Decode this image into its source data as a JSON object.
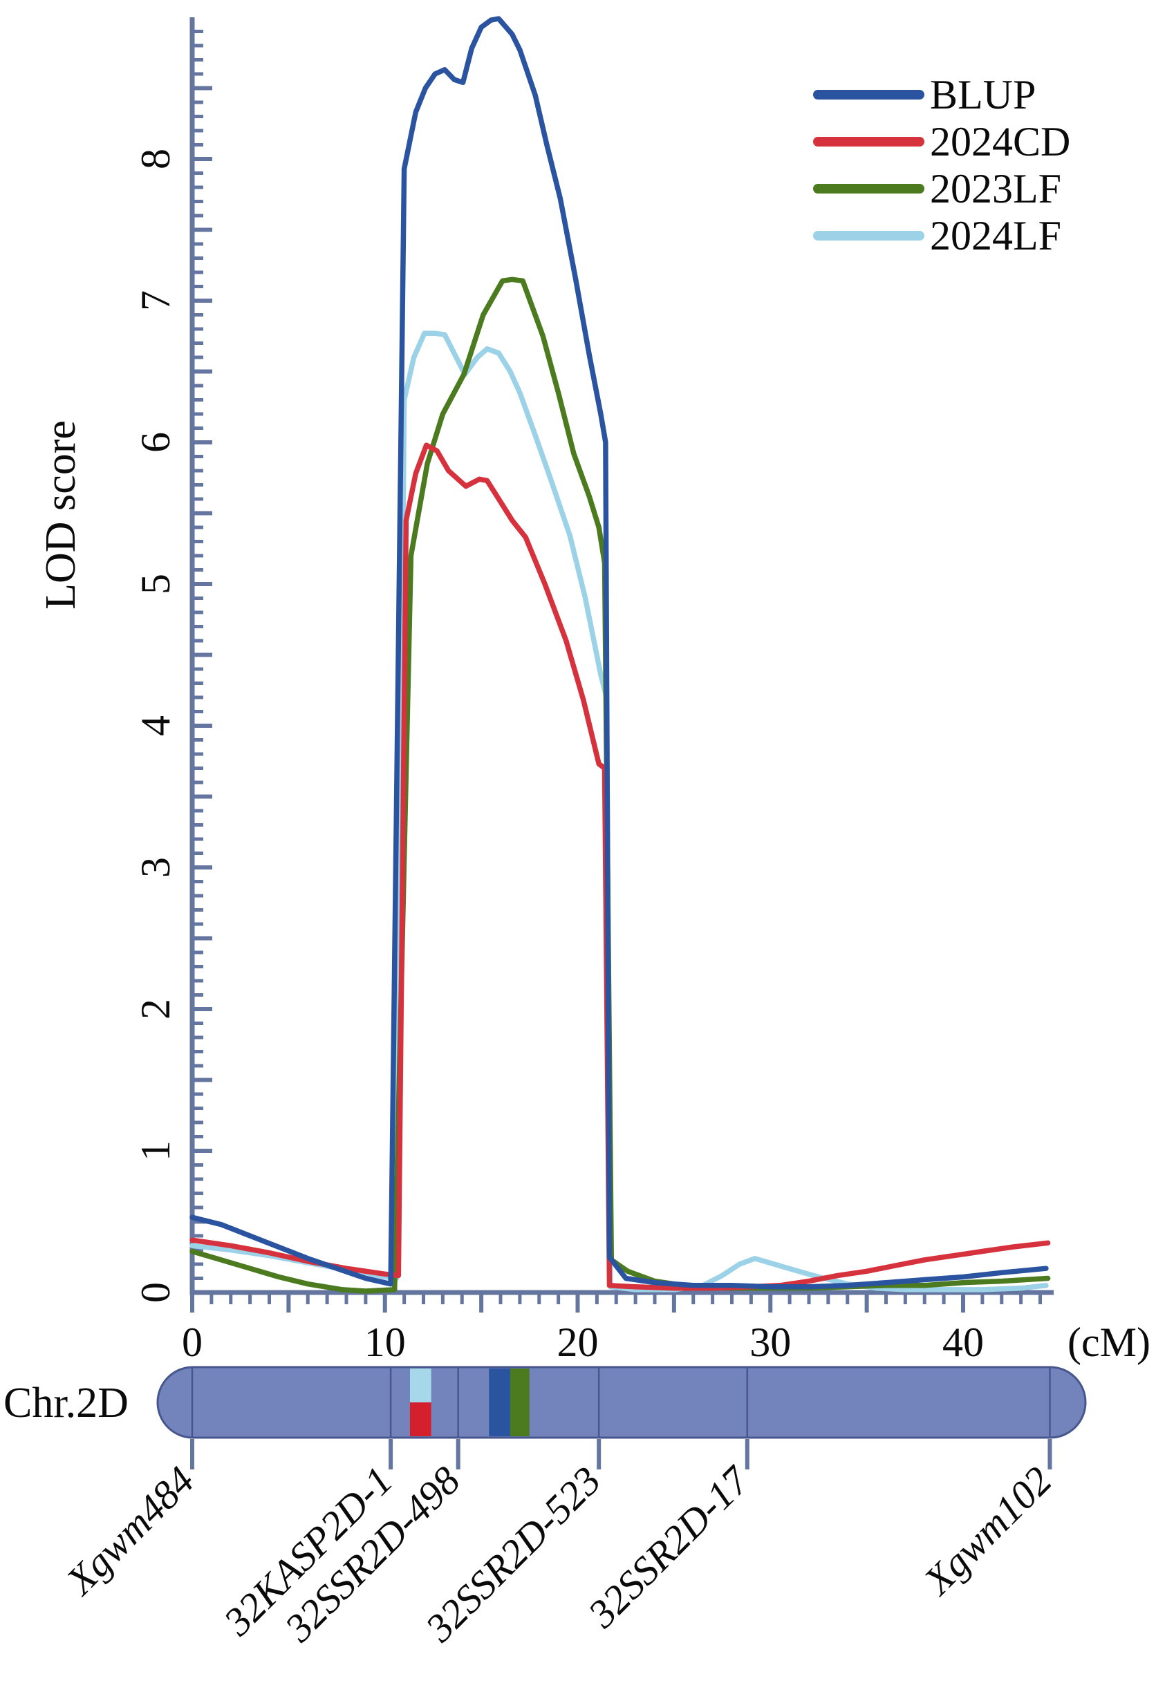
{
  "axes": {
    "y_title": "LOD score",
    "x_unit": "(cM)",
    "x_label_ticks": [
      0,
      10,
      20,
      30,
      40
    ],
    "x_minor_step": 1,
    "x_medium_step": 5,
    "y_label_ticks": [
      0,
      1,
      2,
      3,
      4,
      5,
      6,
      7,
      8
    ],
    "y_medium_step": 0.5,
    "y_minor_step": 0.1,
    "xlim": [
      0,
      44.7
    ],
    "ylim": [
      0,
      9
    ],
    "axis_color": "#64759F"
  },
  "legend": {
    "items": [
      {
        "label": "BLUP",
        "color": "#2B54A0"
      },
      {
        "label": "2024CD",
        "color": "#D6323E"
      },
      {
        "label": "2023LF",
        "color": "#4B7A1F"
      },
      {
        "label": "2024LF",
        "color": "#9CD2E7"
      }
    ]
  },
  "chart_data": {
    "type": "line",
    "title": "",
    "xlabel": "(cM)",
    "ylabel": "LOD score",
    "xlim": [
      0,
      44.7
    ],
    "ylim": [
      0,
      9
    ],
    "grid": false,
    "legend_position": "top-right",
    "series": [
      {
        "name": "BLUP",
        "color": "#2B54A0",
        "points": [
          [
            0,
            0.53
          ],
          [
            1.5,
            0.48
          ],
          [
            3,
            0.4
          ],
          [
            4.5,
            0.32
          ],
          [
            6,
            0.24
          ],
          [
            7.5,
            0.17
          ],
          [
            9,
            0.1
          ],
          [
            10.3,
            0.06
          ],
          [
            11,
            7.93
          ],
          [
            11.6,
            8.33
          ],
          [
            12.1,
            8.5
          ],
          [
            12.6,
            8.6
          ],
          [
            13.1,
            8.63
          ],
          [
            13.6,
            8.56
          ],
          [
            14.05,
            8.54
          ],
          [
            14.5,
            8.78
          ],
          [
            15,
            8.93
          ],
          [
            15.5,
            8.98
          ],
          [
            15.9,
            8.99
          ],
          [
            16.6,
            8.88
          ],
          [
            17,
            8.77
          ],
          [
            17.8,
            8.45
          ],
          [
            18.4,
            8.1
          ],
          [
            19.1,
            7.72
          ],
          [
            19.9,
            7.15
          ],
          [
            20.6,
            6.62
          ],
          [
            21.2,
            6.2
          ],
          [
            21.45,
            6.0
          ],
          [
            21.65,
            0.25
          ],
          [
            22.5,
            0.1
          ],
          [
            24,
            0.07
          ],
          [
            26,
            0.05
          ],
          [
            28,
            0.05
          ],
          [
            30,
            0.04
          ],
          [
            32,
            0.04
          ],
          [
            34,
            0.05
          ],
          [
            36,
            0.07
          ],
          [
            38,
            0.09
          ],
          [
            40,
            0.11
          ],
          [
            42,
            0.14
          ],
          [
            44.3,
            0.17
          ]
        ]
      },
      {
        "name": "2024CD",
        "color": "#D6323E",
        "points": [
          [
            0,
            0.37
          ],
          [
            2,
            0.33
          ],
          [
            4,
            0.28
          ],
          [
            6,
            0.22
          ],
          [
            8,
            0.17
          ],
          [
            10,
            0.13
          ],
          [
            10.7,
            0.12
          ],
          [
            11.1,
            5.45
          ],
          [
            11.6,
            5.78
          ],
          [
            12.15,
            5.98
          ],
          [
            12.7,
            5.94
          ],
          [
            13.3,
            5.8
          ],
          [
            14.2,
            5.69
          ],
          [
            14.9,
            5.74
          ],
          [
            15.3,
            5.73
          ],
          [
            16,
            5.58
          ],
          [
            16.6,
            5.45
          ],
          [
            17.3,
            5.33
          ],
          [
            18.3,
            5.0
          ],
          [
            19.4,
            4.6
          ],
          [
            20.3,
            4.18
          ],
          [
            21.1,
            3.73
          ],
          [
            21.4,
            3.7
          ],
          [
            21.65,
            0.05
          ],
          [
            23,
            0.04
          ],
          [
            25,
            0.03
          ],
          [
            27,
            0.03
          ],
          [
            29,
            0.04
          ],
          [
            30.5,
            0.05
          ],
          [
            32,
            0.08
          ],
          [
            33.5,
            0.12
          ],
          [
            35,
            0.15
          ],
          [
            36.5,
            0.19
          ],
          [
            38,
            0.23
          ],
          [
            39.5,
            0.26
          ],
          [
            41,
            0.29
          ],
          [
            42.5,
            0.32
          ],
          [
            44.4,
            0.35
          ]
        ]
      },
      {
        "name": "2023LF",
        "color": "#4B7A1F",
        "points": [
          [
            0,
            0.29
          ],
          [
            1.5,
            0.23
          ],
          [
            3,
            0.17
          ],
          [
            4.5,
            0.11
          ],
          [
            6,
            0.06
          ],
          [
            7.8,
            0.02
          ],
          [
            9,
            0.01
          ],
          [
            10.5,
            0.02
          ],
          [
            11.35,
            5.2
          ],
          [
            12.2,
            5.85
          ],
          [
            13,
            6.2
          ],
          [
            14.1,
            6.48
          ],
          [
            15.1,
            6.9
          ],
          [
            16.1,
            7.14
          ],
          [
            16.6,
            7.15
          ],
          [
            17.15,
            7.14
          ],
          [
            18.2,
            6.75
          ],
          [
            19,
            6.35
          ],
          [
            19.8,
            5.92
          ],
          [
            20.6,
            5.62
          ],
          [
            21.1,
            5.4
          ],
          [
            21.4,
            5.15
          ],
          [
            21.75,
            0.23
          ],
          [
            22.6,
            0.15
          ],
          [
            24,
            0.08
          ],
          [
            26,
            0.04
          ],
          [
            28,
            0.03
          ],
          [
            30,
            0.03
          ],
          [
            32,
            0.03
          ],
          [
            34,
            0.04
          ],
          [
            36,
            0.05
          ],
          [
            38,
            0.05
          ],
          [
            40,
            0.07
          ],
          [
            42,
            0.08
          ],
          [
            44.4,
            0.1
          ]
        ]
      },
      {
        "name": "2024LF",
        "color": "#9CD2E7",
        "points": [
          [
            0,
            0.33
          ],
          [
            2,
            0.3
          ],
          [
            4,
            0.26
          ],
          [
            6,
            0.21
          ],
          [
            8,
            0.16
          ],
          [
            10,
            0.11
          ],
          [
            10.6,
            0.1
          ],
          [
            11,
            6.3
          ],
          [
            11.5,
            6.6
          ],
          [
            12.05,
            6.77
          ],
          [
            12.6,
            6.77
          ],
          [
            13.1,
            6.76
          ],
          [
            13.7,
            6.6
          ],
          [
            14.15,
            6.48
          ],
          [
            14.8,
            6.6
          ],
          [
            15.3,
            6.66
          ],
          [
            15.9,
            6.63
          ],
          [
            16.5,
            6.5
          ],
          [
            17,
            6.35
          ],
          [
            17.8,
            6.05
          ],
          [
            18.6,
            5.74
          ],
          [
            19.6,
            5.34
          ],
          [
            20.4,
            4.9
          ],
          [
            21.2,
            4.36
          ],
          [
            21.5,
            4.2
          ],
          [
            21.7,
            0.04
          ],
          [
            23,
            0.02
          ],
          [
            25,
            0.02
          ],
          [
            26.5,
            0.05
          ],
          [
            27.5,
            0.12
          ],
          [
            28.4,
            0.2
          ],
          [
            29.2,
            0.24
          ],
          [
            30.2,
            0.2
          ],
          [
            31.2,
            0.16
          ],
          [
            32.5,
            0.11
          ],
          [
            34,
            0.06
          ],
          [
            35.5,
            0.03
          ],
          [
            37,
            0.02
          ],
          [
            39,
            0.02
          ],
          [
            41,
            0.02
          ],
          [
            43,
            0.03
          ],
          [
            44.3,
            0.05
          ]
        ]
      }
    ]
  },
  "ideogram": {
    "label": "Chr.2D",
    "bar_color": "#7383BB",
    "bar_border": "#47578E",
    "tick_color": "#64759F",
    "markers": [
      {
        "name": "Xgwm484",
        "cM": 0
      },
      {
        "name": "32KASP2D-1",
        "cM": 10.3
      },
      {
        "name": "32SSR2D-498",
        "cM": 13.8
      },
      {
        "name": "32SSR2D-523",
        "cM": 21.1
      },
      {
        "name": "32SSR2D-17",
        "cM": 28.8
      },
      {
        "name": "Xgwm102",
        "cM": 44.5
      }
    ],
    "bands": [
      {
        "series": "2024LF",
        "color": "#A6D8EA",
        "cM": [
          11.3,
          12.4
        ],
        "half": "top"
      },
      {
        "series": "2024CD",
        "color": "#D41F2C",
        "cM": [
          11.3,
          12.4
        ],
        "half": "bottom"
      },
      {
        "series": "BLUP",
        "color": "#2B54A0",
        "cM": [
          15.4,
          16.5
        ],
        "half": "full"
      },
      {
        "series": "2023LF",
        "color": "#4B7A1F",
        "cM": [
          16.5,
          17.5
        ],
        "half": "full"
      }
    ]
  }
}
